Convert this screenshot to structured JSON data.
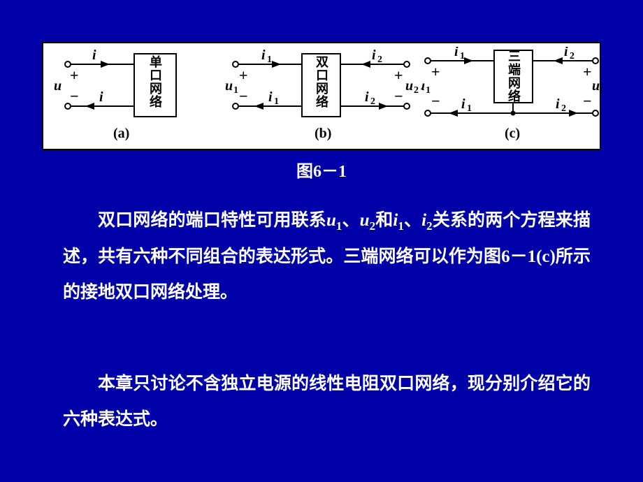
{
  "figure": {
    "caption": "图6－1",
    "panels": {
      "a": {
        "label": "(a)",
        "box_text": "单口网络",
        "port": {
          "v": "u",
          "i_top": "i",
          "i_bot": "i"
        }
      },
      "b": {
        "label": "(b)",
        "box_text": "双口网络",
        "left": {
          "v": "u",
          "v_sub": "1",
          "i": "i",
          "i_sub": "1"
        },
        "right": {
          "v": "u",
          "v_sub": "2",
          "i": "i",
          "i_sub": "2"
        }
      },
      "c": {
        "label": "(c)",
        "box_text": "三端网络",
        "left": {
          "v": "u",
          "v_sub": "1",
          "i": "i",
          "i_sub": "1"
        },
        "right": {
          "v": "u",
          "v_sub": "2",
          "i": "i",
          "i_sub": "2"
        }
      }
    }
  },
  "text": {
    "p1_a": "双口网络的端口特性可用联系",
    "u1": "u",
    "u1s": "1",
    "p1_b": "、",
    "u2": "u",
    "u2s": "2",
    "p1_c": "和",
    "i1": "i",
    "i1s": "1",
    "p1_d": "、",
    "i2": "i",
    "i2s": "2",
    "p1_e": "关系的两个方程来描述，共有六种不同组合的表达形式。三端网络可以作为图6－1(c)所示的接地双口网络处理。",
    "p2": "本章只讨论不含独立电源的线性电阻双口网络，现分别介绍它的六种表达式。"
  },
  "colors": {
    "bg": "#0000a8",
    "panel_bg": "#ffffff",
    "stroke": "#000000",
    "text": "#ffffff"
  }
}
